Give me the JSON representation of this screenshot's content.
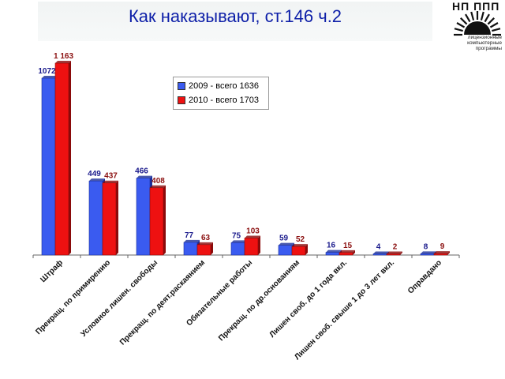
{
  "header": {
    "title": "Как наказывают, ст.146 ч.2"
  },
  "logo": {
    "top_text": "НП ППП",
    "lines": [
      "лицензионные",
      "компьютерные",
      "программы"
    ],
    "icon": "sunburst-logo-icon"
  },
  "colors": {
    "series_2009": "#3a5bf0",
    "series_2010": "#ee1111",
    "label_2009": "#1a1a8c",
    "label_2010": "#8b1010"
  },
  "chart_data": {
    "type": "bar",
    "categories": [
      "Штраф",
      "Прекращ. по примирению",
      "Условное лишен. свободы",
      "Прекращ. по деят.раскаянием",
      "Обязательные работы",
      "Прекращ. по др.основаниям",
      "Лишен своб. до 1 года вкл.",
      "Лишен своб. свыше 1 до 3 лет вкл.",
      "Оправдано"
    ],
    "series": [
      {
        "name": "2009 - всего 1636",
        "values": [
          1072,
          449,
          466,
          77,
          75,
          59,
          16,
          4,
          8
        ],
        "labels": [
          "1072",
          "449",
          "466",
          "77",
          "75",
          "59",
          "16",
          "4",
          "8"
        ]
      },
      {
        "name": "2010 - всего 1703",
        "values": [
          1163,
          437,
          408,
          63,
          103,
          52,
          15,
          2,
          9
        ],
        "labels": [
          "1 163",
          "437",
          "408",
          "63",
          "103",
          "52",
          "15",
          "2",
          "9"
        ]
      }
    ],
    "ylim": [
      0,
      1163
    ],
    "legend_position": "top-center",
    "grid": false
  }
}
